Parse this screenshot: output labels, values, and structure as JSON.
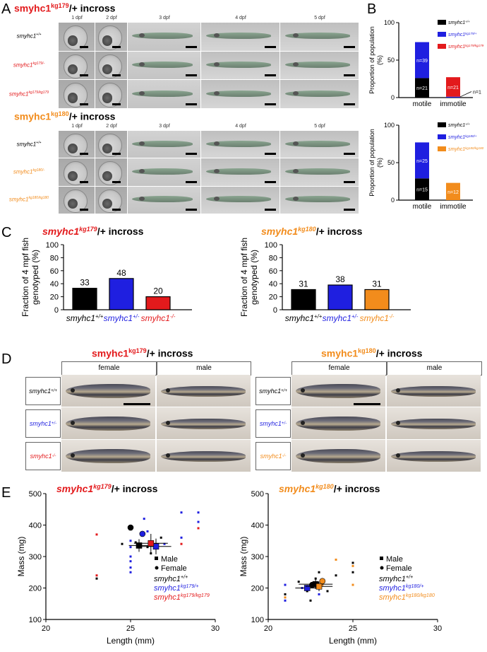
{
  "panelA": {
    "letter": "A",
    "cross1_title_base": "smyhc1",
    "cross1_title_sup": "kg179",
    "cross1_title_rest": "/+ incross",
    "cross2_title_base": "smyhc1",
    "cross2_title_sup": "kg180",
    "cross2_title_rest": "/+ incross",
    "dpf": [
      "1 dpf",
      "2 dpf",
      "3 dpf",
      "4 dpf",
      "5 dpf"
    ],
    "rows1": [
      {
        "base": "smyhc1",
        "sup": "+/+",
        "color": "#000000"
      },
      {
        "base": "smyhc1",
        "sup": "kg179/-",
        "color": "#e31a1c"
      },
      {
        "base": "smyhc1",
        "sup": "kg179/kg179",
        "color": "#e31a1c"
      }
    ],
    "rows2": [
      {
        "base": "smyhc1",
        "sup": "+/+",
        "color": "#000000"
      },
      {
        "base": "smyhc1",
        "sup": "kg180/-",
        "color": "#f28c1c"
      },
      {
        "base": "smyhc1",
        "sup": "kg180/kg180",
        "color": "#f28c1c"
      }
    ]
  },
  "panelB": {
    "letter": "B",
    "ylabel": "Proportion of population (%)",
    "chart_data": [
      {
        "type": "bar",
        "categories": [
          "motile",
          "immotile"
        ],
        "ylim": [
          0,
          100
        ],
        "yticks": [
          "0",
          "50",
          "100"
        ],
        "series": [
          {
            "name": "smyhc1+/+",
            "color": "#000000",
            "values": [
              26,
              0
            ],
            "labels": [
              "n=21",
              ""
            ]
          },
          {
            "name": "smyhc1kg179/+",
            "color": "#1f1fe0",
            "values": [
              48,
              1.2
            ],
            "labels": [
              "n=39",
              ""
            ]
          },
          {
            "name": "smyhc1kg179/kg179",
            "color": "#e31a1c",
            "values": [
              0,
              26
            ],
            "labels": [
              "",
              "n=21"
            ]
          }
        ],
        "extra_label": "n=1",
        "legend": [
          "smyhc1+/+",
          "smyhc1kg179/+",
          "smyhc1kg179/kg179"
        ]
      },
      {
        "type": "bar",
        "categories": [
          "motile",
          "immotile"
        ],
        "ylim": [
          0,
          100
        ],
        "yticks": [
          "0",
          "50",
          "100"
        ],
        "series": [
          {
            "name": "smyhc1+/+",
            "color": "#000000",
            "values": [
              29,
              0
            ],
            "labels": [
              "n=15",
              ""
            ]
          },
          {
            "name": "smyhc1kg180/+",
            "color": "#1f1fe0",
            "values": [
              48,
              0
            ],
            "labels": [
              "n=25",
              ""
            ]
          },
          {
            "name": "smyhc1kg180/kg180",
            "color": "#f28c1c",
            "values": [
              0,
              23
            ],
            "labels": [
              "",
              "n=12"
            ]
          }
        ],
        "legend": [
          "smyhc1+/+",
          "smyhc1kg180/+",
          "smyhc1kg180/kg180"
        ]
      }
    ]
  },
  "panelC": {
    "letter": "C",
    "ylabel_line1": "Fraction of 4 mpf fish",
    "ylabel_line2": "genotyped (%)",
    "chart_data": [
      {
        "type": "bar",
        "title_base": "smyhc1",
        "title_sup": "kg179",
        "title_rest": "/+ incross",
        "title_color": "#e31a1c",
        "categories": [
          "smyhc1+/+",
          "smyhc1+/-",
          "smyhc1-/-"
        ],
        "values": [
          33,
          48,
          20
        ],
        "colors": [
          "#000000",
          "#1f1fe0",
          "#e31a1c"
        ],
        "ylim": [
          0,
          100
        ],
        "yticks": [
          "0",
          "20",
          "40",
          "60",
          "80",
          "100"
        ]
      },
      {
        "type": "bar",
        "title_base": "smyhc1",
        "title_sup": "kg180",
        "title_rest": "/+ incross",
        "title_color": "#f28c1c",
        "categories": [
          "smyhc1+/+",
          "smyhc1+/-",
          "smyhc1-/-"
        ],
        "values": [
          31,
          38,
          31
        ],
        "colors": [
          "#000000",
          "#1f1fe0",
          "#f28c1c"
        ],
        "ylim": [
          0,
          100
        ],
        "yticks": [
          "0",
          "20",
          "40",
          "60",
          "80",
          "100"
        ]
      }
    ]
  },
  "panelD": {
    "letter": "D",
    "left_title_base": "smyhc1",
    "left_title_sup": "kg179",
    "left_title_rest": "/+ incross",
    "right_title_base": "smyhc1",
    "right_title_sup": "kg180",
    "right_title_rest": "/+ incross",
    "female": "female",
    "male": "male",
    "left_rows": [
      {
        "base": "smyhc1",
        "sup": "+/+",
        "color": "#000000"
      },
      {
        "base": "smyhc1",
        "sup": "+/-",
        "color": "#1f1fe0"
      },
      {
        "base": "smyhc1",
        "sup": "-/-",
        "color": "#e31a1c"
      }
    ],
    "right_rows": [
      {
        "base": "smyhc1",
        "sup": "+/+",
        "color": "#000000"
      },
      {
        "base": "smyhc1",
        "sup": "+/-",
        "color": "#1f1fe0"
      },
      {
        "base": "smyhc1",
        "sup": "-/-",
        "color": "#f28c1c"
      }
    ]
  },
  "panelE": {
    "letter": "E",
    "chart_data": [
      {
        "type": "scatter",
        "title_base": "smyhc1",
        "title_sup": "kg179",
        "title_rest": "/+ incross",
        "title_color": "#e31a1c",
        "xlabel": "Length (mm)",
        "ylabel": "Mass (mg)",
        "xlim": [
          20,
          30
        ],
        "ylim": [
          100,
          500
        ],
        "xticks": [
          "20",
          "25",
          "30"
        ],
        "yticks": [
          "100",
          "200",
          "300",
          "400",
          "500"
        ],
        "points": [
          {
            "x": 23,
            "y": 370,
            "c": "#e31a1c"
          },
          {
            "x": 23,
            "y": 240,
            "c": "#e31a1c"
          },
          {
            "x": 23,
            "y": 230,
            "c": "#000000"
          },
          {
            "x": 24.5,
            "y": 340,
            "c": "#000000"
          },
          {
            "x": 25,
            "y": 390,
            "c": "#000000"
          },
          {
            "x": 25,
            "y": 350,
            "c": "#1f1fe0"
          },
          {
            "x": 25,
            "y": 330,
            "c": "#1f1fe0"
          },
          {
            "x": 25,
            "y": 300,
            "c": "#1f1fe0"
          },
          {
            "x": 25,
            "y": 285,
            "c": "#1f1fe0"
          },
          {
            "x": 25,
            "y": 265,
            "c": "#1f1fe0"
          },
          {
            "x": 25,
            "y": 250,
            "c": "#1f1fe0"
          },
          {
            "x": 25.3,
            "y": 345,
            "c": "#000000"
          },
          {
            "x": 25.6,
            "y": 330,
            "c": "#000000"
          },
          {
            "x": 25.8,
            "y": 420,
            "c": "#1f1fe0"
          },
          {
            "x": 26,
            "y": 380,
            "c": "#1f1fe0"
          },
          {
            "x": 26,
            "y": 330,
            "c": "#000000"
          },
          {
            "x": 26.2,
            "y": 310,
            "c": "#000000"
          },
          {
            "x": 26.5,
            "y": 330,
            "c": "#1f1fe0"
          },
          {
            "x": 26.8,
            "y": 360,
            "c": "#000000"
          },
          {
            "x": 27,
            "y": 340,
            "c": "#1f1fe0"
          },
          {
            "x": 28,
            "y": 440,
            "c": "#1f1fe0"
          },
          {
            "x": 28,
            "y": 360,
            "c": "#1f1fe0"
          },
          {
            "x": 28,
            "y": 340,
            "c": "#e31a1c"
          },
          {
            "x": 29,
            "y": 440,
            "c": "#1f1fe0"
          },
          {
            "x": 29,
            "y": 410,
            "c": "#1f1fe0"
          },
          {
            "x": 29,
            "y": 390,
            "c": "#e31a1c"
          }
        ],
        "means": [
          {
            "x": 25,
            "y": 392,
            "c": "#000000",
            "shape": "circle"
          },
          {
            "x": 25.5,
            "y": 335,
            "c": "#000000",
            "shape": "square",
            "xerr": 0.6,
            "yerr": 20
          },
          {
            "x": 25.7,
            "y": 372,
            "c": "#1f1fe0",
            "shape": "circle"
          },
          {
            "x": 26.5,
            "y": 332,
            "c": "#1f1fe0",
            "shape": "square",
            "xerr": 0.9,
            "yerr": 25
          },
          {
            "x": 26.2,
            "y": 342,
            "c": "#e31a1c",
            "shape": "square",
            "xerr": 1.0,
            "yerr": 30
          }
        ],
        "legend": {
          "male": "Male",
          "female": "Female",
          "g1": "smyhc1+/+",
          "g2": "smyhc1kg179/+",
          "g3": "smyhc1kg179/kg179"
        }
      },
      {
        "type": "scatter",
        "title_base": "smyhc1",
        "title_sup": "kg180",
        "title_rest": "/+ incross",
        "title_color": "#f28c1c",
        "xlabel": "Length (mm)",
        "ylabel": "Mass (mg)",
        "xlim": [
          20,
          30
        ],
        "ylim": [
          100,
          500
        ],
        "xticks": [
          "20",
          "25",
          "30"
        ],
        "yticks": [
          "100",
          "200",
          "300",
          "400",
          "500"
        ],
        "points": [
          {
            "x": 21,
            "y": 210,
            "c": "#1f1fe0"
          },
          {
            "x": 21,
            "y": 180,
            "c": "#000000"
          },
          {
            "x": 21,
            "y": 170,
            "c": "#f28c1c"
          },
          {
            "x": 21,
            "y": 160,
            "c": "#1f1fe0"
          },
          {
            "x": 21.8,
            "y": 220,
            "c": "#000000"
          },
          {
            "x": 22,
            "y": 200,
            "c": "#1f1fe0"
          },
          {
            "x": 22.3,
            "y": 190,
            "c": "#000000"
          },
          {
            "x": 22.5,
            "y": 160,
            "c": "#000000"
          },
          {
            "x": 22.8,
            "y": 230,
            "c": "#000000"
          },
          {
            "x": 23,
            "y": 250,
            "c": "#000000"
          },
          {
            "x": 23,
            "y": 180,
            "c": "#1f1fe0"
          },
          {
            "x": 23.2,
            "y": 210,
            "c": "#f28c1c"
          },
          {
            "x": 23.5,
            "y": 190,
            "c": "#000000"
          },
          {
            "x": 24,
            "y": 290,
            "c": "#f28c1c"
          },
          {
            "x": 24,
            "y": 240,
            "c": "#000000"
          },
          {
            "x": 25,
            "y": 280,
            "c": "#000000"
          },
          {
            "x": 25,
            "y": 270,
            "c": "#f28c1c"
          },
          {
            "x": 25,
            "y": 250,
            "c": "#000000"
          },
          {
            "x": 25,
            "y": 210,
            "c": "#f28c1c"
          }
        ],
        "means": [
          {
            "x": 22.3,
            "y": 200,
            "c": "#1f1fe0",
            "shape": "square",
            "xerr": 0.7,
            "yerr": 10
          },
          {
            "x": 22.8,
            "y": 212,
            "c": "#000000",
            "shape": "square",
            "xerr": 1.0,
            "yerr": 15
          },
          {
            "x": 23,
            "y": 205,
            "c": "#f28c1c",
            "shape": "square",
            "xerr": 0.8,
            "yerr": 15
          },
          {
            "x": 23.2,
            "y": 222,
            "c": "#f28c1c",
            "shape": "circle"
          },
          {
            "x": 22.6,
            "y": 210,
            "c": "#000000",
            "shape": "circle"
          }
        ],
        "legend": {
          "male": "Male",
          "female": "Female",
          "g1": "smyhc1+/+",
          "g2": "smyhc1kg180/+",
          "g3": "smyhc1kg180/kg180"
        }
      }
    ]
  },
  "colors": {
    "black": "#000000",
    "blue": "#1f1fe0",
    "red": "#e31a1c",
    "orange": "#f28c1c"
  }
}
